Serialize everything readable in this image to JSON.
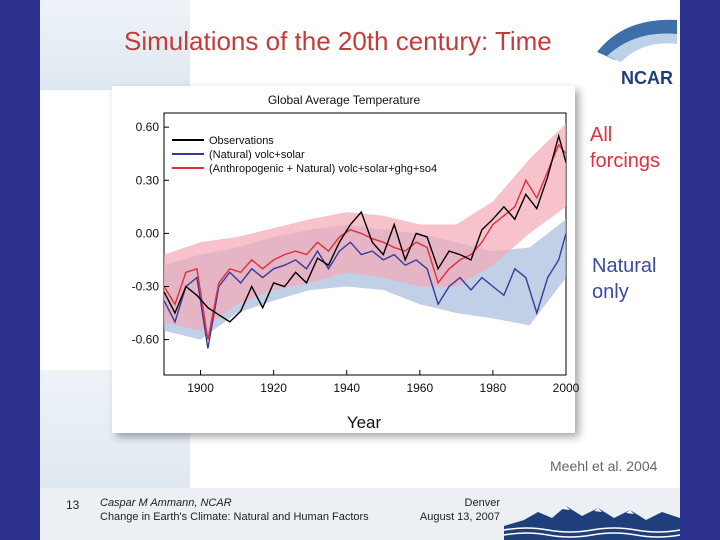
{
  "slide": {
    "title": "Simulations of the 20th century: Time",
    "logo_text": "NCAR",
    "label_all": "All forcings",
    "label_natural": "Natural only",
    "citation": "Meehl et al. 2004",
    "footer": {
      "page_number": "13",
      "author": "Caspar M Ammann, NCAR",
      "subtitle": "Change in Earth's Climate: Natural and Human Factors",
      "location": "Denver",
      "date": "August 13, 2007"
    }
  },
  "colors": {
    "observations": "#000000",
    "natural": "#3a3a9e",
    "all_forcings": "#e0303a",
    "all_band": "#f4a8b6",
    "natural_band": "#a6bcdc",
    "title": "#c63a3a",
    "natural_label": "#3a4a9e",
    "background": "#2b2f8e"
  },
  "chart_data": {
    "type": "line",
    "title": "Global Average Temperature",
    "xlabel": "Year",
    "ylabel": "",
    "xlim": [
      1890,
      2000
    ],
    "ylim": [
      -0.8,
      0.68
    ],
    "xticks": [
      "1900",
      "1920",
      "1940",
      "1960",
      "1980",
      "2000"
    ],
    "yticks": [
      "0.60",
      "0.30",
      "0.00",
      "-0.30",
      "-0.60"
    ],
    "legend_position": "top-left",
    "grid": false,
    "series": [
      {
        "name": "Observations",
        "color": "#000000",
        "x": [
          1890,
          1893,
          1896,
          1899,
          1902,
          1905,
          1908,
          1911,
          1914,
          1917,
          1920,
          1923,
          1926,
          1929,
          1932,
          1935,
          1938,
          1941,
          1944,
          1947,
          1950,
          1953,
          1956,
          1959,
          1962,
          1965,
          1968,
          1971,
          1974,
          1977,
          1980,
          1983,
          1986,
          1989,
          1992,
          1995,
          1998,
          2000
        ],
        "values": [
          -0.33,
          -0.45,
          -0.3,
          -0.35,
          -0.42,
          -0.46,
          -0.5,
          -0.44,
          -0.3,
          -0.42,
          -0.28,
          -0.3,
          -0.22,
          -0.28,
          -0.14,
          -0.18,
          -0.05,
          0.05,
          0.12,
          -0.05,
          -0.12,
          0.05,
          -0.15,
          0.0,
          -0.02,
          -0.2,
          -0.1,
          -0.12,
          -0.15,
          0.02,
          0.08,
          0.15,
          0.08,
          0.22,
          0.14,
          0.32,
          0.55,
          0.4
        ]
      },
      {
        "name": "(Natural) volc+solar",
        "color": "#3a3a9e",
        "x": [
          1890,
          1893,
          1896,
          1899,
          1902,
          1905,
          1908,
          1911,
          1914,
          1917,
          1920,
          1923,
          1926,
          1929,
          1932,
          1935,
          1938,
          1941,
          1944,
          1947,
          1950,
          1953,
          1956,
          1959,
          1962,
          1965,
          1968,
          1971,
          1974,
          1977,
          1980,
          1983,
          1986,
          1989,
          1992,
          1995,
          1998,
          2000
        ],
        "values": [
          -0.38,
          -0.5,
          -0.3,
          -0.25,
          -0.65,
          -0.3,
          -0.22,
          -0.28,
          -0.2,
          -0.25,
          -0.2,
          -0.18,
          -0.15,
          -0.2,
          -0.1,
          -0.2,
          -0.1,
          -0.05,
          -0.12,
          -0.1,
          -0.15,
          -0.12,
          -0.18,
          -0.15,
          -0.2,
          -0.4,
          -0.3,
          -0.25,
          -0.32,
          -0.25,
          -0.3,
          -0.35,
          -0.2,
          -0.25,
          -0.45,
          -0.25,
          -0.15,
          0.0
        ]
      },
      {
        "name": "(Anthropogenic + Natural) volc+solar+ghg+so4",
        "color": "#e0303a",
        "x": [
          1890,
          1893,
          1896,
          1899,
          1902,
          1905,
          1908,
          1911,
          1914,
          1917,
          1920,
          1923,
          1926,
          1929,
          1932,
          1935,
          1938,
          1941,
          1944,
          1947,
          1950,
          1953,
          1956,
          1959,
          1962,
          1965,
          1968,
          1971,
          1974,
          1977,
          1980,
          1983,
          1986,
          1989,
          1992,
          1995,
          1998,
          2000
        ],
        "values": [
          -0.3,
          -0.4,
          -0.22,
          -0.2,
          -0.6,
          -0.28,
          -0.2,
          -0.22,
          -0.15,
          -0.2,
          -0.15,
          -0.12,
          -0.1,
          -0.12,
          -0.05,
          -0.1,
          -0.02,
          0.02,
          0.0,
          -0.03,
          -0.05,
          -0.08,
          -0.1,
          -0.05,
          -0.08,
          -0.28,
          -0.2,
          -0.15,
          -0.12,
          -0.05,
          0.05,
          0.1,
          0.15,
          0.3,
          0.2,
          0.35,
          0.5,
          0.45
        ]
      }
    ],
    "bands": [
      {
        "name": "Natural spread",
        "color": "#a6bcdc",
        "x": [
          1890,
          1900,
          1910,
          1920,
          1930,
          1940,
          1950,
          1960,
          1970,
          1980,
          1990,
          2000
        ],
        "lower": [
          -0.55,
          -0.6,
          -0.45,
          -0.38,
          -0.32,
          -0.3,
          -0.32,
          -0.4,
          -0.45,
          -0.48,
          -0.52,
          -0.25
        ],
        "upper": [
          -0.18,
          -0.12,
          -0.08,
          -0.02,
          0.02,
          0.05,
          0.02,
          0.0,
          -0.05,
          -0.1,
          -0.08,
          0.08
        ]
      },
      {
        "name": "All forcings spread",
        "color": "#f4a8b6",
        "x": [
          1890,
          1900,
          1910,
          1920,
          1930,
          1940,
          1950,
          1960,
          1970,
          1980,
          1990,
          2000
        ],
        "lower": [
          -0.5,
          -0.55,
          -0.4,
          -0.32,
          -0.28,
          -0.22,
          -0.25,
          -0.3,
          -0.3,
          -0.18,
          0.0,
          0.15
        ],
        "upper": [
          -0.12,
          -0.05,
          -0.02,
          0.03,
          0.08,
          0.12,
          0.1,
          0.05,
          0.05,
          0.18,
          0.42,
          0.62
        ]
      }
    ]
  }
}
